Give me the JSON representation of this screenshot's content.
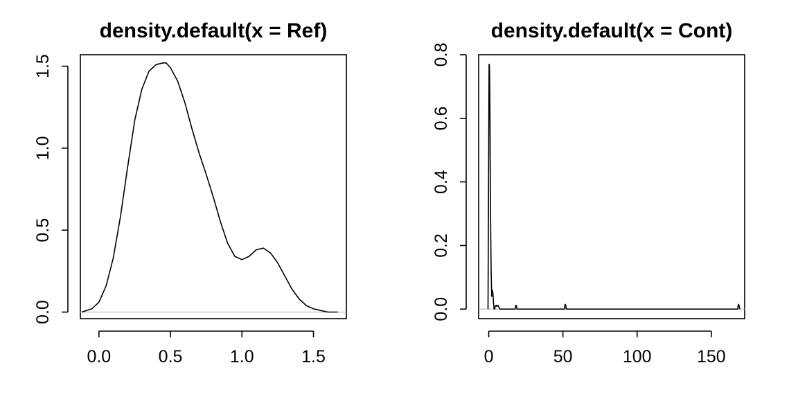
{
  "chart_data": [
    {
      "type": "line",
      "title": "density.default(x = Ref)",
      "xlabel": "",
      "ylabel": "",
      "xlim": [
        -0.13,
        1.73
      ],
      "ylim": [
        -0.04,
        1.57
      ],
      "x_ticks": [
        0,
        0.5,
        1,
        1.5
      ],
      "x_tick_labels": [
        "0.0",
        "0.5",
        "1.0",
        "1.5"
      ],
      "y_ticks": [
        0,
        0.5,
        1,
        1.5
      ],
      "y_tick_labels": [
        "0.0",
        "0.5",
        "1.0",
        "1.5"
      ],
      "baseline": 0,
      "grid": false,
      "series": [
        {
          "x": [
            -0.12,
            -0.05,
            0.0,
            0.05,
            0.1,
            0.15,
            0.2,
            0.25,
            0.3,
            0.35,
            0.4,
            0.45,
            0.47,
            0.5,
            0.55,
            0.6,
            0.65,
            0.7,
            0.75,
            0.8,
            0.85,
            0.9,
            0.95,
            1.0,
            1.05,
            1.1,
            1.15,
            1.2,
            1.25,
            1.3,
            1.35,
            1.4,
            1.45,
            1.5,
            1.55,
            1.6,
            1.67
          ],
          "y": [
            0.0,
            0.02,
            0.06,
            0.16,
            0.33,
            0.58,
            0.88,
            1.17,
            1.36,
            1.47,
            1.51,
            1.52,
            1.52,
            1.49,
            1.41,
            1.28,
            1.12,
            0.97,
            0.84,
            0.7,
            0.55,
            0.42,
            0.34,
            0.32,
            0.34,
            0.38,
            0.39,
            0.36,
            0.3,
            0.22,
            0.14,
            0.08,
            0.04,
            0.02,
            0.01,
            0.0,
            0.0
          ]
        }
      ]
    },
    {
      "type": "line",
      "title": "density.default(x = Cont)",
      "xlabel": "",
      "ylabel": "",
      "xlim": [
        -6.8,
        172.5
      ],
      "ylim": [
        -0.03,
        0.8
      ],
      "x_ticks": [
        0,
        50,
        100,
        150
      ],
      "x_tick_labels": [
        "0",
        "50",
        "100",
        "150"
      ],
      "y_ticks": [
        0,
        0.2,
        0.4,
        0.6,
        0.8
      ],
      "y_tick_labels": [
        "0.0",
        "0.2",
        "0.4",
        "0.6",
        "0.8"
      ],
      "baseline": 0,
      "grid": false,
      "series": [
        {
          "x": [
            -0.5,
            0.0,
            0.2,
            0.4,
            0.6,
            0.8,
            1.0,
            1.3,
            1.6,
            2.0,
            2.4,
            2.8,
            3.2,
            3.6,
            4.0,
            4.5,
            5.0,
            5.5,
            6.0,
            6.5,
            7.0,
            7.5,
            8.0,
            17.8,
            18.1,
            18.4,
            18.7,
            19.0,
            51.0,
            51.3,
            51.6,
            51.9,
            52.2,
            167.8,
            168.1,
            168.4,
            168.7,
            169.0,
            169.4
          ],
          "y": [
            0.0,
            0.56,
            0.77,
            0.77,
            0.74,
            0.62,
            0.45,
            0.27,
            0.12,
            0.04,
            0.06,
            0.05,
            0.02,
            0.0,
            0.0,
            0.01,
            0.012,
            0.008,
            0.012,
            0.01,
            0.004,
            0.0,
            0.0,
            0.0,
            0.01,
            0.012,
            0.01,
            0.0,
            0.0,
            0.012,
            0.015,
            0.012,
            0.0,
            0.0,
            0.012,
            0.015,
            0.012,
            0.003,
            0.0
          ]
        }
      ]
    }
  ]
}
